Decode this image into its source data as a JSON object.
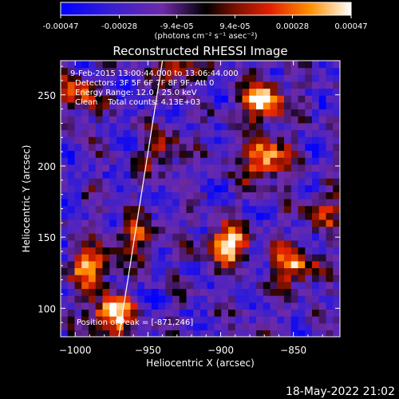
{
  "colorbar": {
    "tick_labels": [
      "-0.00047",
      "-0.00028",
      "-9.4e-05",
      "9.4e-05",
      "0.00028",
      "0.00047"
    ],
    "tick_values": [
      -0.00047,
      -0.00028,
      -9.4e-05,
      9.4e-05,
      0.00028,
      0.00047
    ],
    "range": [
      -0.00047,
      0.00047
    ],
    "units_label": "(photons cm⁻² s⁻¹ asec⁻²)"
  },
  "colors": {
    "background": "#000000",
    "negative_low": "#0000ff",
    "negative_mid": "#5a30b0",
    "positive_mid": "#d02000",
    "positive_high": "#ff8000",
    "peak": "#ffffff"
  },
  "chart_data": {
    "type": "heatmap",
    "title": "Reconstructed RHESSI Image",
    "xlabel": "Heliocentric X (arcsec)",
    "ylabel": "Heliocentric Y (arcsec)",
    "xlim": [
      -1010,
      -818
    ],
    "ylim": [
      80,
      274
    ],
    "x_ticks": [
      -1000,
      -950,
      -900,
      -850
    ],
    "x_tick_labels": [
      "−1000",
      "−950",
      "−900",
      "−850"
    ],
    "y_ticks": [
      100,
      150,
      200,
      250
    ],
    "y_tick_labels": [
      "100",
      "150",
      "200",
      "250"
    ],
    "annotations": [
      "9-Feb-2015 13:00:44.000 to 13:06:44.000",
      "Detectors: 3F 5F 6F 7F 8F 9F, Att 0",
      "Energy Range: 12.0 - 25.0 keV",
      "Clean    Total counts: 4.13E+03"
    ],
    "peak_label": "Position of Peak = [-871,246]",
    "peak_position": [
      -871,
      246
    ],
    "limb_line": [
      [
        -970,
        80
      ],
      [
        -940,
        274
      ]
    ],
    "sources": [
      {
        "x": -975,
        "y": 95,
        "strength": 1.0
      },
      {
        "x": -990,
        "y": 130,
        "strength": 0.75
      },
      {
        "x": -1000,
        "y": 250,
        "strength": 0.65
      },
      {
        "x": -960,
        "y": 150,
        "strength": 0.55
      },
      {
        "x": -895,
        "y": 145,
        "strength": 0.95
      },
      {
        "x": -870,
        "y": 205,
        "strength": 0.9
      },
      {
        "x": -871,
        "y": 246,
        "strength": 1.0
      },
      {
        "x": -850,
        "y": 130,
        "strength": 0.8
      },
      {
        "x": -930,
        "y": 270,
        "strength": 0.6
      },
      {
        "x": -940,
        "y": 210,
        "strength": 0.5
      },
      {
        "x": -830,
        "y": 170,
        "strength": 0.45
      }
    ]
  },
  "footer": {
    "timestamp": "18-May-2022 21:02"
  }
}
